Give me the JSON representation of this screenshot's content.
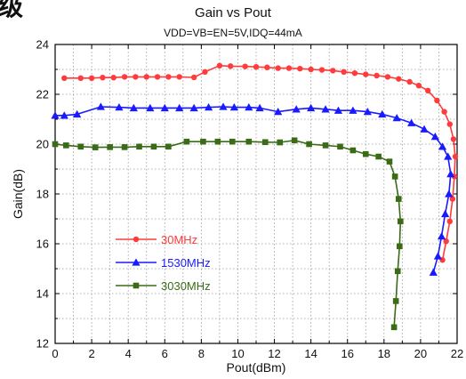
{
  "corner_text": "级",
  "chart_data": {
    "type": "line",
    "title": "Gain vs Pout",
    "subtitle": "VDD=VB=EN=5V,IDQ=44mA",
    "xlabel": "Pout(dBm)",
    "ylabel": "Gain(dB)",
    "xlim": [
      0,
      22
    ],
    "ylim": [
      12,
      24
    ],
    "xticks": [
      0,
      2,
      4,
      6,
      8,
      10,
      12,
      14,
      16,
      18,
      20,
      22
    ],
    "yticks": [
      12,
      14,
      16,
      18,
      20,
      22,
      24
    ],
    "grid": true,
    "legend_position": "lower-left",
    "series": [
      {
        "name": "30MHz",
        "color": "#ff3b3b",
        "marker": "circle",
        "points": [
          [
            0.5,
            22.65
          ],
          [
            1.4,
            22.65
          ],
          [
            2.0,
            22.65
          ],
          [
            2.6,
            22.67
          ],
          [
            3.2,
            22.67
          ],
          [
            3.8,
            22.7
          ],
          [
            4.4,
            22.7
          ],
          [
            5.0,
            22.7
          ],
          [
            5.6,
            22.7
          ],
          [
            6.2,
            22.7
          ],
          [
            6.8,
            22.7
          ],
          [
            7.6,
            22.68
          ],
          [
            8.2,
            22.9
          ],
          [
            9.0,
            23.15
          ],
          [
            9.6,
            23.13
          ],
          [
            10.4,
            23.12
          ],
          [
            11.0,
            23.1
          ],
          [
            11.6,
            23.08
          ],
          [
            12.2,
            23.05
          ],
          [
            12.8,
            23.05
          ],
          [
            13.4,
            23.03
          ],
          [
            14.0,
            23.0
          ],
          [
            14.6,
            22.98
          ],
          [
            15.2,
            22.95
          ],
          [
            15.8,
            22.9
          ],
          [
            16.4,
            22.85
          ],
          [
            17.0,
            22.8
          ],
          [
            17.6,
            22.75
          ],
          [
            18.2,
            22.7
          ],
          [
            18.8,
            22.62
          ],
          [
            19.4,
            22.5
          ],
          [
            19.9,
            22.35
          ],
          [
            20.4,
            22.15
          ],
          [
            20.9,
            21.75
          ],
          [
            21.3,
            21.3
          ],
          [
            21.6,
            20.8
          ],
          [
            21.8,
            20.2
          ],
          [
            21.9,
            19.5
          ],
          [
            21.85,
            18.7
          ],
          [
            21.75,
            17.8
          ],
          [
            21.6,
            16.9
          ],
          [
            21.4,
            16.1
          ],
          [
            21.2,
            15.35
          ]
        ]
      },
      {
        "name": "1530MHz",
        "color": "#1a1aff",
        "marker": "triangle",
        "points": [
          [
            0.0,
            21.15
          ],
          [
            0.5,
            21.15
          ],
          [
            1.2,
            21.2
          ],
          [
            2.5,
            21.5
          ],
          [
            3.5,
            21.48
          ],
          [
            4.3,
            21.45
          ],
          [
            5.2,
            21.45
          ],
          [
            6.0,
            21.45
          ],
          [
            6.8,
            21.45
          ],
          [
            7.6,
            21.45
          ],
          [
            8.4,
            21.48
          ],
          [
            9.2,
            21.5
          ],
          [
            9.8,
            21.48
          ],
          [
            10.6,
            21.48
          ],
          [
            11.2,
            21.45
          ],
          [
            12.2,
            21.3
          ],
          [
            13.2,
            21.4
          ],
          [
            14.0,
            21.45
          ],
          [
            14.8,
            21.4
          ],
          [
            15.5,
            21.35
          ],
          [
            16.3,
            21.35
          ],
          [
            17.1,
            21.3
          ],
          [
            17.9,
            21.2
          ],
          [
            18.7,
            21.05
          ],
          [
            19.5,
            20.85
          ],
          [
            20.2,
            20.6
          ],
          [
            20.8,
            20.3
          ],
          [
            21.2,
            19.9
          ],
          [
            21.5,
            19.5
          ],
          [
            21.65,
            18.8
          ],
          [
            21.55,
            18.0
          ],
          [
            21.35,
            17.2
          ],
          [
            21.15,
            16.3
          ],
          [
            20.95,
            15.5
          ],
          [
            20.7,
            14.85
          ]
        ]
      },
      {
        "name": "3030MHz",
        "color": "#3a6b17",
        "marker": "square",
        "points": [
          [
            0.0,
            20.0
          ],
          [
            0.6,
            19.95
          ],
          [
            1.4,
            19.9
          ],
          [
            2.2,
            19.87
          ],
          [
            3.0,
            19.88
          ],
          [
            3.8,
            19.88
          ],
          [
            4.6,
            19.9
          ],
          [
            5.4,
            19.9
          ],
          [
            6.2,
            19.9
          ],
          [
            7.2,
            20.1
          ],
          [
            8.1,
            20.1
          ],
          [
            8.9,
            20.1
          ],
          [
            9.7,
            20.1
          ],
          [
            10.6,
            20.1
          ],
          [
            11.5,
            20.08
          ],
          [
            12.3,
            20.07
          ],
          [
            13.1,
            20.15
          ],
          [
            13.9,
            20.0
          ],
          [
            14.8,
            19.95
          ],
          [
            15.6,
            19.9
          ],
          [
            16.3,
            19.75
          ],
          [
            17.0,
            19.6
          ],
          [
            17.7,
            19.5
          ],
          [
            18.3,
            19.3
          ],
          [
            18.6,
            18.7
          ],
          [
            18.8,
            17.8
          ],
          [
            18.9,
            16.9
          ],
          [
            18.85,
            15.9
          ],
          [
            18.75,
            14.9
          ],
          [
            18.65,
            13.7
          ],
          [
            18.55,
            12.65
          ]
        ]
      }
    ]
  }
}
